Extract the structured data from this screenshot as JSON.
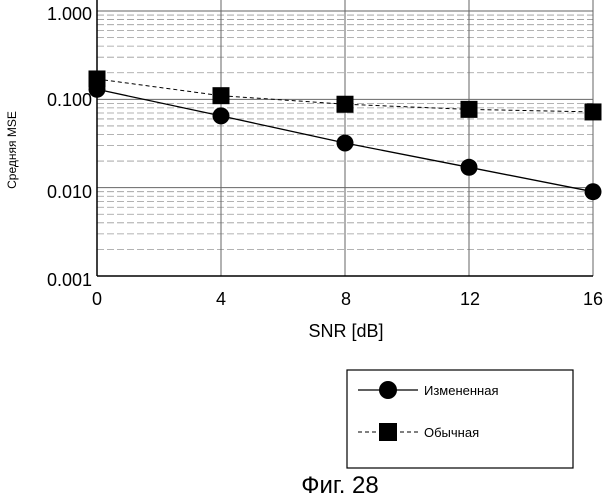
{
  "chart_data": {
    "type": "line",
    "x": [
      0,
      4,
      8,
      12,
      16
    ],
    "xlabel": "SNR [dB]",
    "ylabel": "Средняя MSE",
    "yscale": "log",
    "xlim": [
      0,
      16
    ],
    "ylim": [
      0.001,
      1.0
    ],
    "x_ticks": [
      "0",
      "4",
      "8",
      "12",
      "16"
    ],
    "y_ticks": [
      "0.001",
      "0.010",
      "0.100",
      "1.000"
    ],
    "grid": true,
    "legend_position": "bottom-right",
    "series": [
      {
        "name": "Измененная",
        "marker": "circle",
        "line": "solid",
        "values": [
          0.13,
          0.065,
          0.032,
          0.017,
          0.009
        ]
      },
      {
        "name": "Обычная",
        "marker": "square",
        "line": "dashed",
        "values": [
          0.17,
          0.11,
          0.088,
          0.077,
          0.072
        ]
      }
    ]
  },
  "caption": "Фиг. 28",
  "colors": {
    "line": "#000000",
    "major_grid": "#666666",
    "minor_grid": "#9a9a9a"
  }
}
